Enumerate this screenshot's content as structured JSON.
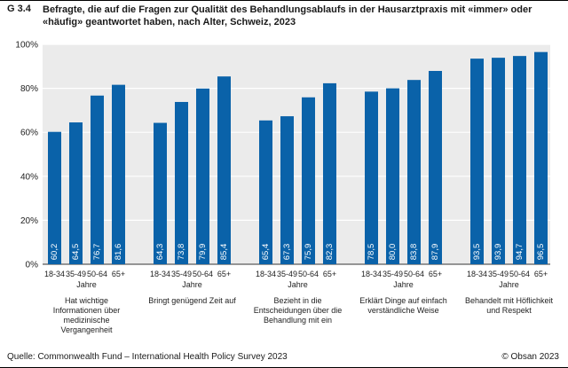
{
  "figure": {
    "number": "G 3.4",
    "title": "Befragte, die auf die Fragen zur Qualität des Behandlungsablaufs in der Hausarztpraxis mit «immer» oder «häufig» geantwortet haben, nach Alter, Schweiz, 2023",
    "source": "Quelle: Commonwealth Fund – International Health Policy Survey 2023",
    "copyright": "© Obsan 2023"
  },
  "colors": {
    "bar": "#0a62a9",
    "background": "#ebebeb",
    "grid": "#ffffff"
  },
  "chart_data": {
    "type": "bar",
    "title": "Befragte, die auf die Fragen zur Qualität des Behandlungsablaufs in der Hausarztpraxis mit «immer» oder «häufig» geantwortet haben, nach Alter, Schweiz, 2023",
    "age_groups": [
      "18-34",
      "35-49",
      "50-64",
      "65+"
    ],
    "age_unit": "Jahre",
    "groups": [
      {
        "label": [
          "Hat wichtige",
          "Informationen über",
          "medizinische",
          "Vergangenheit"
        ],
        "values": [
          60.2,
          64.5,
          76.7,
          81.6
        ],
        "value_labels": [
          "60,2",
          "64,5",
          "76,7",
          "81,6"
        ]
      },
      {
        "label": [
          "Bringt genügend Zeit auf"
        ],
        "values": [
          64.3,
          73.8,
          79.9,
          85.4
        ],
        "value_labels": [
          "64,3",
          "73,8",
          "79,9",
          "85,4"
        ]
      },
      {
        "label": [
          "Bezieht in die",
          "Entscheidungen über die",
          "Behandlung mit ein"
        ],
        "values": [
          65.4,
          67.3,
          75.9,
          82.3
        ],
        "value_labels": [
          "65,4",
          "67,3",
          "75,9",
          "82,3"
        ]
      },
      {
        "label": [
          "Erklärt Dinge auf einfach",
          "verständliche Weise"
        ],
        "values": [
          78.5,
          80.0,
          83.8,
          87.9
        ],
        "value_labels": [
          "78,5",
          "80,0",
          "83,8",
          "87,9"
        ]
      },
      {
        "label": [
          "Behandelt mit Höflichkeit",
          "und Respekt"
        ],
        "values": [
          93.5,
          93.9,
          94.7,
          96.5
        ],
        "value_labels": [
          "93,5",
          "93,9",
          "94,7",
          "96,5"
        ]
      }
    ],
    "y_ticks": [
      "0%",
      "20%",
      "40%",
      "60%",
      "80%",
      "100%"
    ],
    "ylim": [
      0,
      100
    ],
    "grid": true
  }
}
